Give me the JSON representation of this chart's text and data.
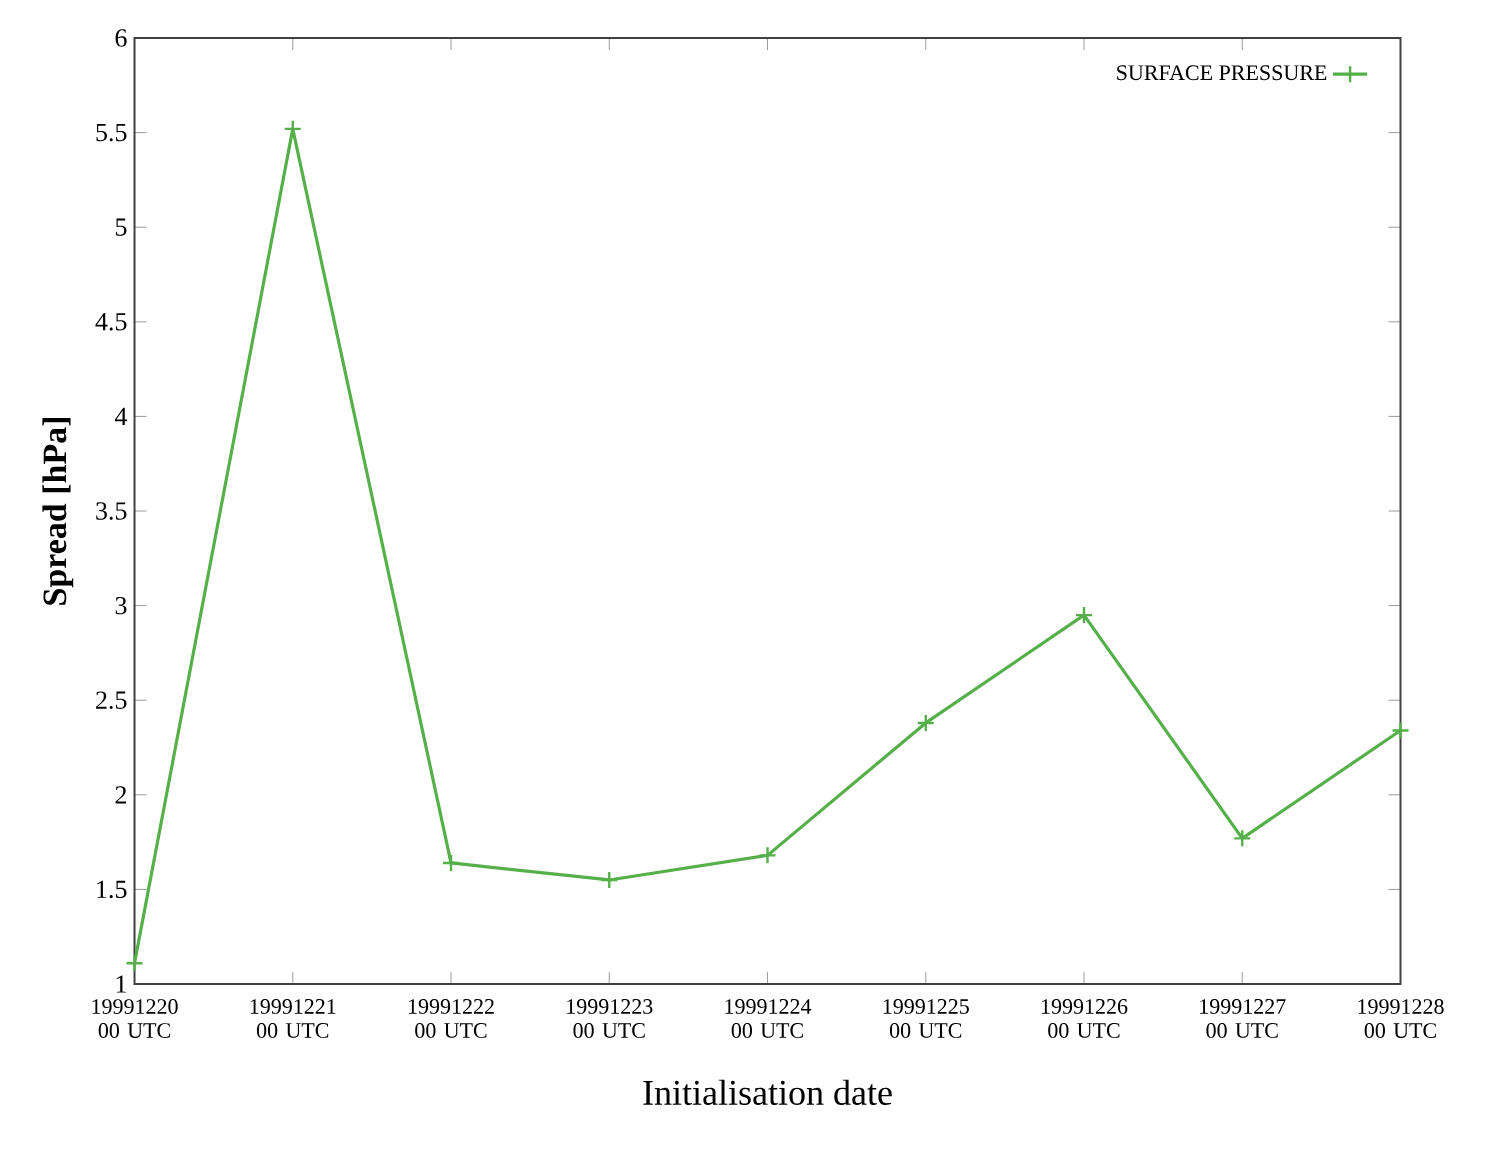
{
  "chart_data": {
    "type": "line",
    "xlabel": "Initialisation date",
    "ylabel": "Spread [hPa]",
    "categories": [
      "19991220 00 UTC",
      "19991221 00 UTC",
      "19991222 00 UTC",
      "19991223 00 UTC",
      "19991224 00 UTC",
      "19991225 00 UTC",
      "19991226 00 UTC",
      "19991227 00 UTC",
      "19991228 00 UTC"
    ],
    "series": [
      {
        "name": "SURFACE PRESSURE",
        "color": "#55b04a",
        "values": [
          1.11,
          5.52,
          1.64,
          1.55,
          1.68,
          2.38,
          2.95,
          1.77,
          2.34
        ]
      }
    ],
    "ylim": [
      1,
      6
    ],
    "yticks": [
      1,
      1.5,
      2,
      2.5,
      3,
      3.5,
      4,
      4.5,
      5,
      5.5,
      6
    ],
    "marker": "cross",
    "line_style": "solid",
    "legend": "top right",
    "grid": false
  }
}
